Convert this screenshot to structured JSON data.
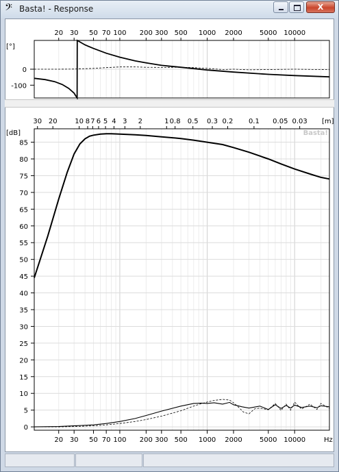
{
  "window": {
    "title": "Basta! - Response",
    "app_icon": "bass-clef-icon",
    "close_glyph": "X"
  },
  "phase_plot": {
    "ylabel": "[°]",
    "y_ticks": [
      {
        "value": 0,
        "label": "0"
      },
      {
        "value": -100,
        "label": "-100"
      }
    ],
    "freq_ticks": [
      {
        "f": 20,
        "label": "20"
      },
      {
        "f": 30,
        "label": "30"
      },
      {
        "f": 50,
        "label": "50"
      },
      {
        "f": 70,
        "label": "70"
      },
      {
        "f": 100,
        "label": "100"
      },
      {
        "f": 200,
        "label": "200"
      },
      {
        "f": 300,
        "label": "300"
      },
      {
        "f": 500,
        "label": "500"
      },
      {
        "f": 1000,
        "label": "1000"
      },
      {
        "f": 2000,
        "label": "2000"
      },
      {
        "f": 5000,
        "label": "5000"
      },
      {
        "f": 10000,
        "label": "10000"
      }
    ]
  },
  "magnitude_plot": {
    "ylabel": "[dB]",
    "xunit": "Hz",
    "wave_unit": "[m]",
    "watermark": "Basta!",
    "y_ticks": [
      "0",
      "5",
      "10",
      "15",
      "20",
      "25",
      "30",
      "35",
      "40",
      "45",
      "50",
      "55",
      "60",
      "65",
      "70",
      "75",
      "80",
      "85"
    ],
    "freq_ticks": [
      {
        "f": 20,
        "label": "20"
      },
      {
        "f": 30,
        "label": "30"
      },
      {
        "f": 50,
        "label": "50"
      },
      {
        "f": 70,
        "label": "70"
      },
      {
        "f": 100,
        "label": "100"
      },
      {
        "f": 200,
        "label": "200"
      },
      {
        "f": 300,
        "label": "300"
      },
      {
        "f": 500,
        "label": "500"
      },
      {
        "f": 1000,
        "label": "1000"
      },
      {
        "f": 2000,
        "label": "2000"
      },
      {
        "f": 5000,
        "label": "5000"
      },
      {
        "f": 10000,
        "label": "10000"
      }
    ],
    "wavelength_ticks": [
      {
        "m": 30,
        "label": "30"
      },
      {
        "m": 20,
        "label": "20"
      },
      {
        "m": 10,
        "label": "10"
      },
      {
        "m": 8,
        "label": "8"
      },
      {
        "m": 7,
        "label": "7"
      },
      {
        "m": 6,
        "label": "6"
      },
      {
        "m": 5,
        "label": "5"
      },
      {
        "m": 4,
        "label": "4"
      },
      {
        "m": 3,
        "label": "3"
      },
      {
        "m": 2,
        "label": "2"
      },
      {
        "m": 1,
        "label": "1"
      },
      {
        "m": 0.8,
        "label": "0.8"
      },
      {
        "m": 0.5,
        "label": "0.5"
      },
      {
        "m": 0.3,
        "label": "0.3"
      },
      {
        "m": 0.2,
        "label": "0.2"
      },
      {
        "m": 0.1,
        "label": "0.1"
      },
      {
        "m": 0.05,
        "label": "0.05"
      },
      {
        "m": 0.03,
        "label": "0.03"
      }
    ]
  },
  "chart_data": [
    {
      "type": "line",
      "x_scale": "log",
      "xlim": [
        10.5,
        25000
      ],
      "ylim": [
        -180,
        180
      ],
      "series": [
        {
          "style": "solid",
          "x": [
            10.5,
            14,
            18,
            22,
            26,
            30,
            32.5,
            32.6,
            40,
            50,
            70,
            100,
            150,
            200,
            300,
            500,
            1000,
            2000,
            5000,
            10000,
            25000
          ],
          "y": [
            -57,
            -65,
            -78,
            -96,
            -120,
            -150,
            -180,
            180,
            152,
            130,
            100,
            75,
            52,
            40,
            24,
            12,
            -5,
            -18,
            -32,
            -40,
            -48
          ]
        },
        {
          "style": "dashed",
          "x": [
            10.5,
            20,
            30,
            50,
            70,
            100,
            150,
            200,
            300,
            500,
            700,
            1000,
            1500,
            2000,
            3000,
            5000,
            10000,
            25000
          ],
          "y": [
            0,
            0,
            1,
            5,
            10,
            14,
            14,
            12,
            11,
            12,
            10,
            5,
            -2,
            0,
            -4,
            -2,
            0,
            -3
          ]
        }
      ]
    },
    {
      "type": "line",
      "x_scale": "log",
      "xlim": [
        10.5,
        25000
      ],
      "ylim": [
        -1,
        89
      ],
      "ylabel": "[dB]",
      "xlabel": "Hz",
      "series": [
        {
          "style": "solid",
          "x": [
            10.5,
            15,
            20,
            25,
            30,
            35,
            40,
            45,
            50,
            60,
            70,
            80,
            100,
            150,
            200,
            300,
            500,
            700,
            1000,
            1500,
            2000,
            3000,
            5000,
            7000,
            10000,
            15000,
            20000,
            25000
          ],
          "y": [
            44.5,
            57,
            68,
            76,
            81.5,
            84.5,
            86,
            86.8,
            87.1,
            87.4,
            87.5,
            87.5,
            87.4,
            87.2,
            87,
            86.6,
            86.1,
            85.6,
            85,
            84.3,
            83.4,
            82,
            80,
            78.5,
            77,
            75.5,
            74.5,
            74
          ]
        },
        {
          "style": "solid",
          "x": [
            10.5,
            20,
            30,
            50,
            70,
            100,
            150,
            200,
            300,
            500,
            700,
            850,
            1000,
            1200,
            1500,
            1800,
            2000,
            2500,
            3000,
            4000,
            5000,
            6000,
            7000,
            8000,
            9000,
            10000,
            12000,
            15000,
            18000,
            20000,
            25000
          ],
          "y": [
            0,
            0.1,
            0.3,
            0.6,
            1.0,
            1.6,
            2.5,
            3.4,
            4.7,
            6.2,
            7.0,
            7.1,
            7.0,
            7.2,
            6.8,
            7.3,
            6.6,
            6.0,
            5.6,
            6.2,
            5.2,
            6.6,
            5.5,
            6.4,
            5.6,
            6.5,
            5.8,
            6.2,
            5.7,
            6.3,
            6.0
          ]
        },
        {
          "style": "dashed",
          "x": [
            10.5,
            20,
            30,
            50,
            70,
            100,
            150,
            200,
            300,
            500,
            700,
            850,
            1000,
            1200,
            1500,
            1800,
            2000,
            2300,
            2600,
            3000,
            3500,
            4000,
            5000,
            6000,
            7000,
            8000,
            9000,
            10000,
            12000,
            15000,
            18000,
            20000,
            25000
          ],
          "y": [
            0,
            0,
            0.1,
            0.3,
            0.6,
            1.0,
            1.6,
            2.2,
            3.2,
            4.8,
            6.2,
            6.9,
            7.4,
            7.9,
            8.2,
            8.0,
            7.2,
            5.8,
            4.4,
            3.9,
            5.4,
            5.6,
            5.1,
            7.0,
            4.9,
            6.8,
            5.0,
            7.4,
            5.3,
            6.8,
            5.2,
            7.0,
            5.5
          ]
        }
      ]
    }
  ],
  "statusbar": {
    "cells": [
      "",
      "",
      ""
    ]
  }
}
